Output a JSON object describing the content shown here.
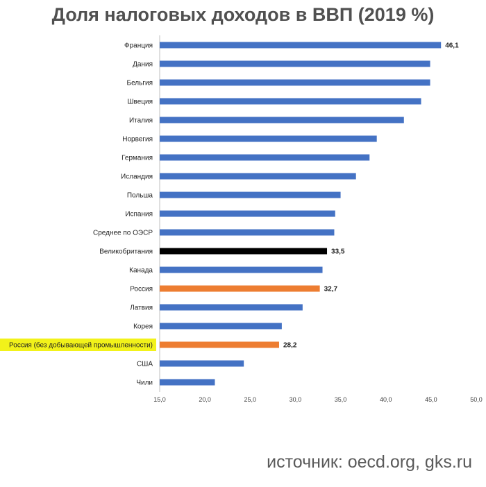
{
  "chart_data": {
    "type": "bar",
    "orientation": "horizontal",
    "title": "Доля налоговых доходов в ВВП (2019 %)",
    "categories": [
      "Франция",
      "Дания",
      "Бельгия",
      "Швеция",
      "Италия",
      "Норвегия",
      "Германия",
      "Исландия",
      "Польша",
      "Испания",
      "Среднее по ОЭСР",
      "Великобритания",
      "Канада",
      "Россия",
      "Латвия",
      "Корея",
      "Россия (без добывающей промышленности)",
      "США",
      "Чили"
    ],
    "values": [
      46.1,
      44.9,
      44.9,
      43.9,
      42.0,
      39.0,
      38.2,
      36.7,
      35.0,
      34.4,
      34.3,
      33.5,
      33.0,
      32.7,
      30.8,
      28.5,
      28.2,
      24.3,
      21.1
    ],
    "data_labels": {
      "0": "46,1",
      "11": "33,5",
      "13": "32,7",
      "16": "28,2"
    },
    "bar_colors": {
      "default": "#4472c4",
      "11": "#000000",
      "13": "#ed7d31",
      "16": "#ed7d31"
    },
    "highlighted_category": 16,
    "highlight_color": "#f2f21a",
    "xlim": [
      15,
      50
    ],
    "x_ticks": [
      "15,0",
      "20,0",
      "25,0",
      "30,0",
      "35,0",
      "40,0",
      "45,0",
      "50,0"
    ],
    "grid": false
  },
  "source": "источник: oecd.org, gks.ru"
}
